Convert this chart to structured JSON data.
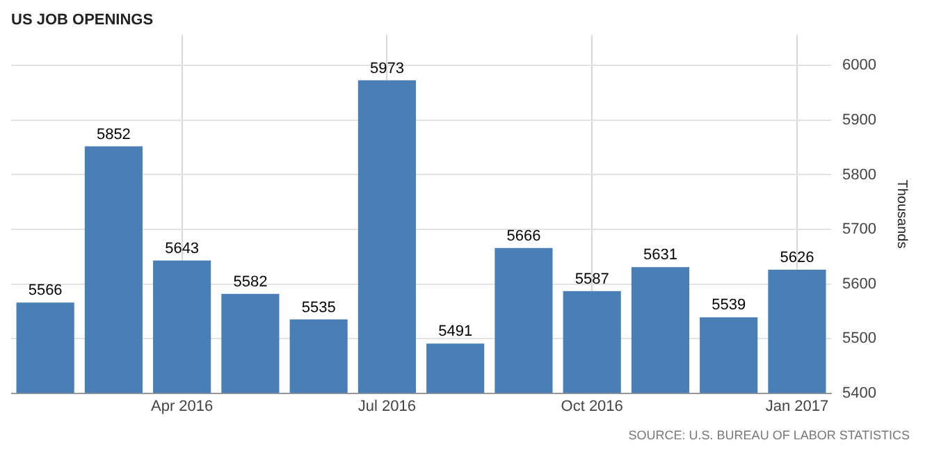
{
  "chart_data": {
    "type": "bar",
    "title": "US JOB OPENINGS",
    "ylabel": "Thousands",
    "annotations": [
      "SOURCE: U.S. BUREAU OF LABOR STATISTICS"
    ],
    "categories": [
      null,
      null,
      "Apr 2016",
      null,
      null,
      "Jul 2016",
      null,
      null,
      "Oct 2016",
      null,
      null,
      "Jan 2017"
    ],
    "series": [
      {
        "color": "#4a7fb5",
        "values": [
          5566,
          5852,
          5643,
          5582,
          5535,
          5973,
          5491,
          5666,
          5587,
          5631,
          5539,
          5626
        ]
      }
    ],
    "ylim": [
      5400,
      6056
    ],
    "yticks": [
      5400,
      5500,
      5600,
      5700,
      5800,
      5900,
      6000
    ],
    "grid": true,
    "data_labels": true,
    "legend": false
  }
}
